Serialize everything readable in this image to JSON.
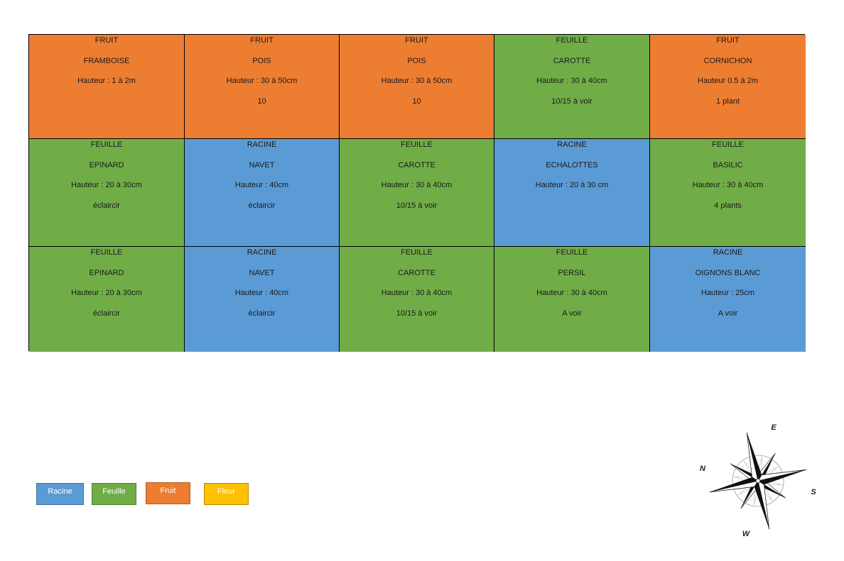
{
  "colors": {
    "racine": "#5b9bd5",
    "feuille": "#70ad47",
    "fruit": "#ed7d31",
    "fleur": "#ffc000"
  },
  "grid": {
    "rows": [
      [
        {
          "type": "fruit",
          "lines": [
            "FRUIT",
            "FRAMBOISE",
            "Hauteur : 1 à 2m"
          ]
        },
        {
          "type": "fruit",
          "lines": [
            "FRUIT",
            "POIS",
            "Hauteur : 30 à 50cm",
            "10"
          ]
        },
        {
          "type": "fruit",
          "lines": [
            "FRUIT",
            "POIS",
            "Hauteur : 30 à 50cm",
            "10"
          ]
        },
        {
          "type": "feuille",
          "lines": [
            "FEUILLE",
            "CAROTTE",
            "Hauteur : 30 à 40cm",
            "10/15 à voir"
          ]
        },
        {
          "type": "fruit",
          "lines": [
            "FRUIT",
            "CORNICHON",
            "Hauteur 0.5 à 2m",
            "1 plant"
          ]
        }
      ],
      [
        {
          "type": "feuille",
          "lines": [
            "FEUILLE",
            "EPINARD",
            "Hauteur : 20 à 30cm",
            "éclaircir"
          ]
        },
        {
          "type": "racine",
          "lines": [
            "RACINE",
            "NAVET",
            "Hauteur : 40cm",
            "éclaircir"
          ]
        },
        {
          "type": "feuille",
          "lines": [
            "FEUILLE",
            "CAROTTE",
            "Hauteur : 30 à 40cm",
            "10/15 à voir"
          ]
        },
        {
          "type": "racine",
          "lines": [
            "RACINE",
            "ECHALOTTES",
            "Hauteur : 20 à 30 cm"
          ]
        },
        {
          "type": "feuille",
          "lines": [
            "FEUILLE",
            "BASILIC",
            "Hauteur : 30 à 40cm",
            "4 plants"
          ]
        }
      ],
      [
        {
          "type": "feuille",
          "lines": [
            "FEUILLE",
            "EPINARD",
            "Hauteur : 20 à 30cm",
            "éclaircir"
          ]
        },
        {
          "type": "racine",
          "lines": [
            "RACINE",
            "NAVET",
            "Hauteur : 40cm",
            "éclaircir"
          ]
        },
        {
          "type": "feuille",
          "lines": [
            "FEUILLE",
            "CAROTTE",
            "Hauteur : 30 à 40cm",
            "10/15 à voir"
          ]
        },
        {
          "type": "feuille",
          "lines": [
            "FEUILLE",
            "PERSIL",
            "Hauteur : 30 à 40cm",
            "A voir"
          ]
        },
        {
          "type": "racine",
          "lines": [
            "RACINE",
            "OIGNONS BLANC",
            "Hauteur : 25cm",
            "A voir"
          ]
        }
      ]
    ]
  },
  "legend": [
    {
      "type": "racine",
      "label": "Racine"
    },
    {
      "type": "feuille",
      "label": "Feuille"
    },
    {
      "type": "fruit",
      "label": "Fruit"
    },
    {
      "type": "fleur",
      "label": "Fleur"
    }
  ],
  "compass": {
    "icon": "compass-rose-icon",
    "n": "N",
    "e": "E",
    "s": "S",
    "w": "W"
  }
}
